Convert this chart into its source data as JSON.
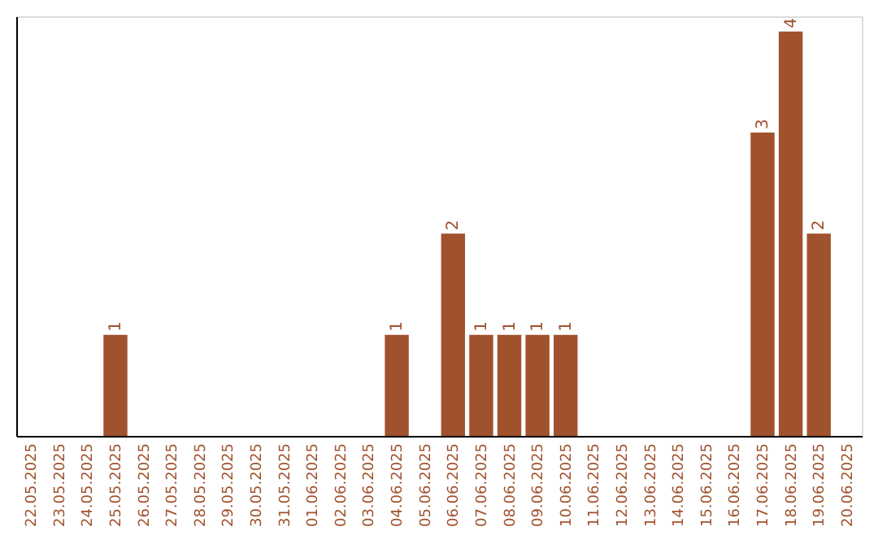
{
  "chart_data": {
    "type": "bar",
    "categories": [
      "22.05.2025",
      "23.05.2025",
      "24.05.2025",
      "25.05.2025",
      "26.05.2025",
      "27.05.2025",
      "28.05.2025",
      "29.05.2025",
      "30.05.2025",
      "31.05.2025",
      "01.06.2025",
      "02.06.2025",
      "03.06.2025",
      "04.06.2025",
      "05.06.2025",
      "06.06.2025",
      "07.06.2025",
      "08.06.2025",
      "09.06.2025",
      "10.06.2025",
      "11.06.2025",
      "12.06.2025",
      "13.06.2025",
      "14.06.2025",
      "15.06.2025",
      "16.06.2025",
      "17.06.2025",
      "18.06.2025",
      "19.06.2025",
      "20.06.2025"
    ],
    "values": [
      0,
      0,
      0,
      1,
      0,
      0,
      0,
      0,
      0,
      0,
      0,
      0,
      0,
      1,
      0,
      2,
      1,
      1,
      1,
      1,
      0,
      0,
      0,
      0,
      0,
      0,
      3,
      4,
      2,
      0
    ],
    "value_labels": [
      null,
      null,
      null,
      "1",
      null,
      null,
      null,
      null,
      null,
      null,
      null,
      null,
      null,
      "1",
      null,
      "2",
      "1",
      "1",
      "1",
      "1",
      null,
      null,
      null,
      null,
      null,
      null,
      "3",
      "4",
      "2",
      null
    ],
    "color": "#a0522d",
    "ylim": [
      0,
      4.15
    ],
    "tick_labels": "x",
    "grid": false
  }
}
